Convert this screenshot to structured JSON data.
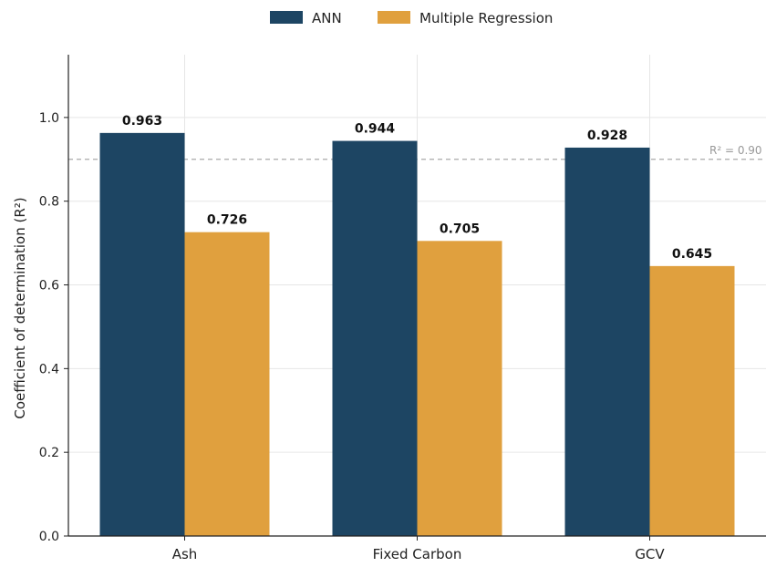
{
  "chart_data": {
    "type": "bar",
    "title": "",
    "xlabel": "",
    "ylabel": "Coefficient of determination (R²)",
    "ylim": [
      0,
      1.15
    ],
    "y_ticks": [
      0.0,
      0.2,
      0.4,
      0.6,
      0.8,
      1.0
    ],
    "y_tick_labels": [
      "0.0",
      "0.2",
      "0.4",
      "0.6",
      "0.8",
      "1.0"
    ],
    "categories": [
      "Ash",
      "Fixed Carbon",
      "GCV"
    ],
    "series": [
      {
        "name": "ANN",
        "color": "#1d4563",
        "values": [
          0.963,
          0.944,
          0.928
        ],
        "labels": [
          "0.963",
          "0.944",
          "0.928"
        ]
      },
      {
        "name": "Multiple Regression",
        "color": "#e0a03e",
        "values": [
          0.726,
          0.705,
          0.645
        ],
        "labels": [
          "0.726",
          "0.705",
          "0.645"
        ]
      }
    ],
    "reference_line": {
      "value": 0.9,
      "label": "R² = 0.90",
      "style": "dashed",
      "color": "#aaaaaa"
    },
    "grid": true,
    "legend_position": "top-center"
  }
}
